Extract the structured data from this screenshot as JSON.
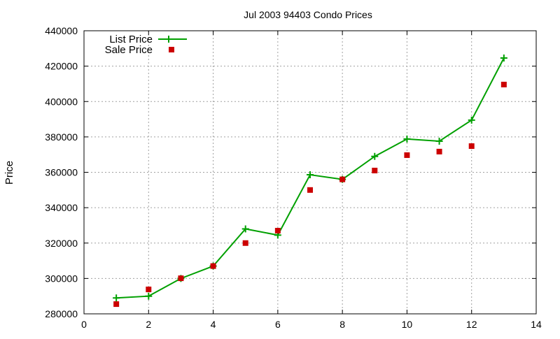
{
  "chart_data": {
    "type": "line",
    "title": "Jul 2003 94403 Condo Prices",
    "xlabel": "",
    "ylabel": "Price",
    "xlim": [
      0,
      14
    ],
    "ylim": [
      280000,
      440000
    ],
    "xticks": [
      0,
      2,
      4,
      6,
      8,
      10,
      12,
      14
    ],
    "yticks": [
      280000,
      300000,
      320000,
      340000,
      360000,
      380000,
      400000,
      420000,
      440000
    ],
    "grid": true,
    "legend_position": "top-left",
    "series": [
      {
        "name": "List Price",
        "style": "linespoints",
        "color": "#00a000",
        "x": [
          1,
          2,
          3,
          4,
          5,
          6,
          7,
          8,
          9,
          10,
          11,
          12,
          13
        ],
        "y": [
          289000,
          290000,
          300000,
          307000,
          328000,
          324500,
          358600,
          356000,
          369000,
          378800,
          377600,
          389500,
          424600
        ]
      },
      {
        "name": "Sale Price",
        "style": "points",
        "color": "#cc0000",
        "x": [
          1,
          2,
          3,
          4,
          5,
          6,
          7,
          8,
          9,
          10,
          11,
          12,
          13
        ],
        "y": [
          285500,
          293800,
          300100,
          307000,
          320000,
          327000,
          350000,
          356000,
          361000,
          369700,
          371700,
          374800,
          409600
        ]
      }
    ]
  }
}
